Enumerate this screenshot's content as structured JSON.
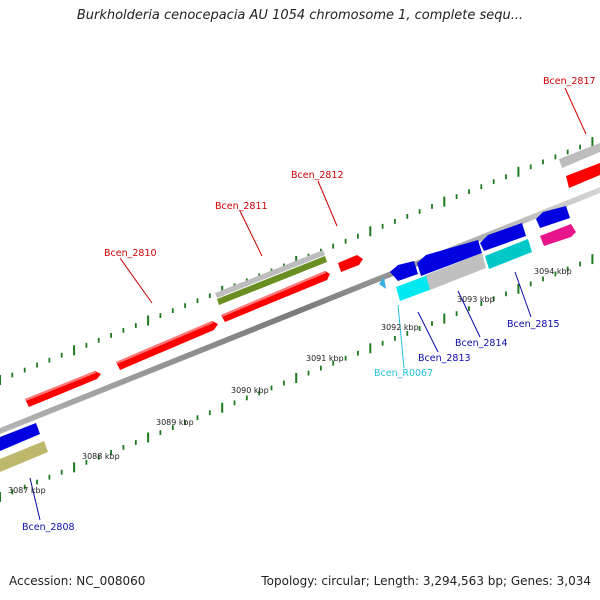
{
  "title": "Burkholderia cenocepacia AU 1054 chromosome 1, complete sequ...",
  "accession": "Accession: NC_008060",
  "summary": "Topology: circular; Length: 3,294,563 bp; Genes: 3,034",
  "colors": {
    "red": "#ff0000",
    "blue": "#0000e0",
    "grey": "#bdbdbd",
    "olive": "#6b8e23",
    "khaki": "#bdb76b",
    "cyan": "#00d8d8",
    "magenta": "#e8148c",
    "tick": "#1e7a1e",
    "label_red": "#cc0000",
    "label_blue": "#0a0aaa",
    "label_cyan": "#22c0e0"
  },
  "tick_labels": [
    "3087 kbp",
    "3088 kbp",
    "3089 kbp",
    "3090 kbp",
    "3091 kbp",
    "3092 kbp",
    "3093 kbp",
    "3094 kbp"
  ],
  "gene_labels": [
    "Bcen_2808",
    "Bcen_2810",
    "Bcen_2811",
    "Bcen_2812",
    "Bcen_R0067",
    "Bcen_2813",
    "Bcen_2814",
    "Bcen_2815",
    "Bcen_2817"
  ]
}
